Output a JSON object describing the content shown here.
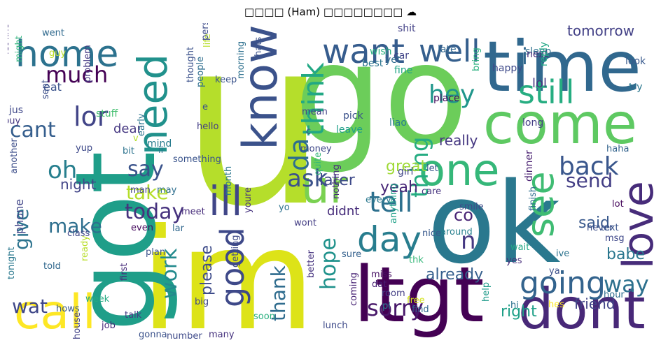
{
  "title": "□□□□ (Ham) □□□□□□□□ ☁",
  "words": [
    {
      "t": "u",
      "c": "#b5de2b"
    },
    {
      "t": "go",
      "c": "#6ccd5a"
    },
    {
      "t": "im",
      "c": "#dde318"
    },
    {
      "t": "got",
      "c": "#1f9e89"
    },
    {
      "t": "ok",
      "c": "#2a788e"
    },
    {
      "t": "time",
      "c": "#31688e"
    },
    {
      "t": "come",
      "c": "#5ec962"
    },
    {
      "t": "know",
      "c": "#3b528b"
    },
    {
      "t": "ltgt",
      "c": "#440154"
    },
    {
      "t": "dont",
      "c": "#482878"
    },
    {
      "t": "call",
      "c": "#fde725"
    },
    {
      "t": "need",
      "c": "#21918c"
    },
    {
      "t": "love",
      "c": "#472c7a"
    },
    {
      "t": "home",
      "c": "#2c728e"
    },
    {
      "t": "want",
      "c": "#365c8d"
    },
    {
      "t": "one",
      "c": "#35b779"
    },
    {
      "t": "still",
      "c": "#26ad81"
    },
    {
      "t": "ill",
      "c": "#404688"
    },
    {
      "t": "good",
      "c": "#3e4989"
    },
    {
      "t": "ur",
      "c": "#7ad151"
    },
    {
      "t": "well",
      "c": "#355f8d"
    },
    {
      "t": "day",
      "c": "#287d8e"
    },
    {
      "t": "see",
      "c": "#3fbc73"
    },
    {
      "t": "going",
      "c": "#33638d"
    },
    {
      "t": "think",
      "c": "#22a884"
    },
    {
      "t": "tell",
      "c": "#2d708e"
    },
    {
      "t": "much",
      "c": "#440154"
    },
    {
      "t": "hey",
      "c": "#1f968b"
    },
    {
      "t": "lor",
      "c": "#414487"
    },
    {
      "t": "oh",
      "c": "#277f8e"
    },
    {
      "t": "da",
      "c": "#2e6e8e"
    },
    {
      "t": "back",
      "c": "#39568c"
    },
    {
      "t": "today",
      "c": "#46327e"
    },
    {
      "t": "cant",
      "c": "#355e8d"
    },
    {
      "t": "ask",
      "c": "#3b528b"
    },
    {
      "t": "thing",
      "c": "#25ac82"
    },
    {
      "t": "sorry",
      "c": "#48186a"
    },
    {
      "t": "way",
      "c": "#2d718e"
    },
    {
      "t": "hope",
      "c": "#20928c"
    },
    {
      "t": "say",
      "c": "#3a538b"
    },
    {
      "t": "take",
      "c": "#b5de2b"
    },
    {
      "t": "make",
      "c": "#2e6f8e"
    },
    {
      "t": "give",
      "c": "#2c738e"
    },
    {
      "t": "work",
      "c": "#238a8d"
    },
    {
      "t": "thank",
      "c": "#2f6c8e"
    },
    {
      "t": "send",
      "c": "#433e85"
    },
    {
      "t": "wat",
      "c": "#3f4788"
    },
    {
      "t": "already",
      "c": "#355f8d"
    },
    {
      "t": "night",
      "c": "#414487"
    },
    {
      "t": "yeah",
      "c": "#482777"
    },
    {
      "t": "great",
      "c": "#a0da39"
    },
    {
      "t": "said",
      "c": "#38588c"
    },
    {
      "t": "really",
      "c": "#453781"
    },
    {
      "t": "tomorrow",
      "c": "#424086"
    },
    {
      "t": "babe",
      "c": "#2a768e"
    },
    {
      "t": "later",
      "c": "#3e4a89"
    },
    {
      "t": "didnt",
      "c": "#472d7b"
    },
    {
      "t": "friend",
      "c": "#414487"
    },
    {
      "t": "lol",
      "c": "#46337f"
    },
    {
      "t": "co",
      "c": "#482475"
    },
    {
      "t": "right",
      "c": "#1fa088"
    },
    {
      "t": "n",
      "c": "#453882"
    },
    {
      "t": "i",
      "c": "#31688e"
    },
    {
      "t": "phone",
      "c": "#404588"
    },
    {
      "t": "please",
      "c": "#3e4c8a"
    },
    {
      "t": "dear",
      "c": "#453781"
    },
    {
      "t": "jus",
      "c": "#3f4889"
    },
    {
      "t": "eat",
      "c": "#3a538b"
    },
    {
      "t": "mind",
      "c": "#287c8e"
    },
    {
      "t": "stuff",
      "c": "#44bf70"
    },
    {
      "t": "long",
      "c": "#433e85"
    },
    {
      "t": "liao",
      "c": "#277e8e"
    },
    {
      "t": "place",
      "c": "#460a5d"
    },
    {
      "t": "leave",
      "c": "#1f9f88"
    },
    {
      "t": "girl",
      "c": "#404688"
    },
    {
      "t": "dinner",
      "c": "#481f70"
    },
    {
      "t": "pick",
      "c": "#3b528b"
    },
    {
      "t": "car",
      "c": "#414487"
    },
    {
      "t": "late",
      "c": "#31668e"
    },
    {
      "t": "wish",
      "c": "#29af7f"
    },
    {
      "t": "best",
      "c": "#2b758e"
    },
    {
      "t": "yet",
      "c": "#2f6b8e"
    },
    {
      "t": "fine",
      "c": "#20a486"
    },
    {
      "t": "sleep",
      "c": "#2d708e"
    },
    {
      "t": "next",
      "c": "#472c7a"
    },
    {
      "t": "look",
      "c": "#38598c"
    },
    {
      "t": "try",
      "c": "#2a778e"
    },
    {
      "t": "happy",
      "c": "#3e4989"
    },
    {
      "t": "reply",
      "c": "#22a785"
    },
    {
      "t": "shit",
      "c": "#424086"
    },
    {
      "t": "feel",
      "c": "#46307e"
    },
    {
      "t": "always",
      "c": "#2e6e8e"
    },
    {
      "t": "amp",
      "c": "#8fd744"
    },
    {
      "t": "bring",
      "c": "#2ab07f"
    },
    {
      "t": "message",
      "c": "#24868e"
    },
    {
      "t": "someone",
      "c": "#3d4d8a"
    },
    {
      "t": "let know",
      "c": "#46327e"
    },
    {
      "t": "went",
      "c": "#306a8e"
    },
    {
      "t": "might",
      "c": "#2fb47c"
    },
    {
      "t": "guy",
      "c": "#bddf26"
    },
    {
      "t": "b",
      "c": "#75d054"
    },
    {
      "t": "problem",
      "c": "#453882"
    },
    {
      "t": "sent",
      "c": "#3c4f8a"
    },
    {
      "t": "buy",
      "c": "#453781"
    },
    {
      "t": "yup",
      "c": "#3e4989"
    },
    {
      "t": "bit",
      "c": "#2c738e"
    },
    {
      "t": "early",
      "c": "#2b748e"
    },
    {
      "t": "ii",
      "c": "#2c728e"
    },
    {
      "t": "another",
      "c": "#3d4e8a"
    },
    {
      "t": "man",
      "c": "#414287"
    },
    {
      "t": "may",
      "c": "#2e6e8e"
    },
    {
      "t": "thought",
      "c": "#3b518b"
    },
    {
      "t": "people",
      "c": "#2e6e8e"
    },
    {
      "t": "life",
      "c": "#b8de29"
    },
    {
      "t": "person",
      "c": "#3e4c8a"
    },
    {
      "t": "morning",
      "c": "#2d708e"
    },
    {
      "t": "thats",
      "c": "#3b528b"
    },
    {
      "t": "keep",
      "c": "#3a538b"
    },
    {
      "t": "hello",
      "c": "#433e85"
    },
    {
      "t": "something",
      "c": "#3a548c"
    },
    {
      "t": "month",
      "c": "#2a778e"
    },
    {
      "t": "meet",
      "c": "#472d7b"
    },
    {
      "t": "lar",
      "c": "#31688e"
    },
    {
      "t": "even",
      "c": "#460b5e"
    },
    {
      "t": "youre",
      "c": "#46337f"
    },
    {
      "t": "yo",
      "c": "#2d718e"
    },
    {
      "t": "wont",
      "c": "#433d84"
    },
    {
      "t": "money",
      "c": "#3f4889"
    },
    {
      "t": "quite",
      "c": "#35b779"
    },
    {
      "t": "nothing",
      "c": "#472a7a"
    },
    {
      "t": "mean",
      "c": "#414287"
    },
    {
      "t": "c",
      "c": "#3a538b"
    },
    {
      "t": "every",
      "c": "#2a788e"
    },
    {
      "t": "let",
      "c": "#39568c"
    },
    {
      "t": "care",
      "c": "#46337f"
    },
    {
      "t": "anything",
      "c": "#1fa188"
    },
    {
      "t": "around",
      "c": "#27808e"
    },
    {
      "t": "smile",
      "c": "#3e4a89"
    },
    {
      "t": "finish",
      "c": "#2e6d8e"
    },
    {
      "t": "never",
      "c": "#3c4f8a"
    },
    {
      "t": "lot",
      "c": "#46085c"
    },
    {
      "t": "haha",
      "c": "#33638d"
    },
    {
      "t": "text",
      "c": "#3a548c"
    },
    {
      "t": "msg",
      "c": "#3f4889"
    },
    {
      "t": "ive",
      "c": "#2c738e"
    },
    {
      "t": "wait",
      "c": "#22a884"
    },
    {
      "t": "yes",
      "c": "#472d7b"
    },
    {
      "t": "nice",
      "c": "#38598c"
    },
    {
      "t": "sure",
      "c": "#34618d"
    },
    {
      "t": "thk",
      "c": "#35b779"
    },
    {
      "t": "miss",
      "c": "#471063"
    },
    {
      "t": "dat",
      "c": "#482173"
    },
    {
      "t": "room",
      "c": "#433e85"
    },
    {
      "t": "pl",
      "c": "#297a8e"
    },
    {
      "t": "coming",
      "c": "#482475"
    },
    {
      "t": "free",
      "c": "#d2e21b"
    },
    {
      "t": "find",
      "c": "#31678e"
    },
    {
      "t": "hes",
      "c": "#fde725"
    },
    {
      "t": "hour",
      "c": "#2e6e8e"
    },
    {
      "t": "ya",
      "c": "#3c508b"
    },
    {
      "t": "help",
      "c": "#1e9b8a"
    },
    {
      "t": "hi",
      "c": "#2d708e"
    },
    {
      "t": "soon",
      "c": "#2ab07f"
    },
    {
      "t": "lunch",
      "c": "#3e4a89"
    },
    {
      "t": "better",
      "c": "#46337f"
    },
    {
      "t": "getting",
      "c": "#3e4a89"
    },
    {
      "t": "plan",
      "c": "#3b528b"
    },
    {
      "t": "first",
      "c": "#472d7b"
    },
    {
      "t": "class",
      "c": "#3f4788"
    },
    {
      "t": "ready",
      "c": "#b8de29"
    },
    {
      "t": "told",
      "c": "#31688e"
    },
    {
      "t": "tonight",
      "c": "#2a788e"
    },
    {
      "t": "hows",
      "c": "#38598c"
    },
    {
      "t": "week",
      "c": "#25ab82"
    },
    {
      "t": "house",
      "c": "#414287"
    },
    {
      "t": "job",
      "c": "#472c7a"
    },
    {
      "t": "talk",
      "c": "#433d84"
    },
    {
      "t": "gonna",
      "c": "#3b528b"
    },
    {
      "t": "number",
      "c": "#3e4a89"
    },
    {
      "t": "many",
      "c": "#46327e"
    },
    {
      "t": "big",
      "c": "#3f4788"
    },
    {
      "t": "e",
      "c": "#3b528b"
    },
    {
      "t": "v",
      "c": "#b5de2b"
    }
  ]
}
